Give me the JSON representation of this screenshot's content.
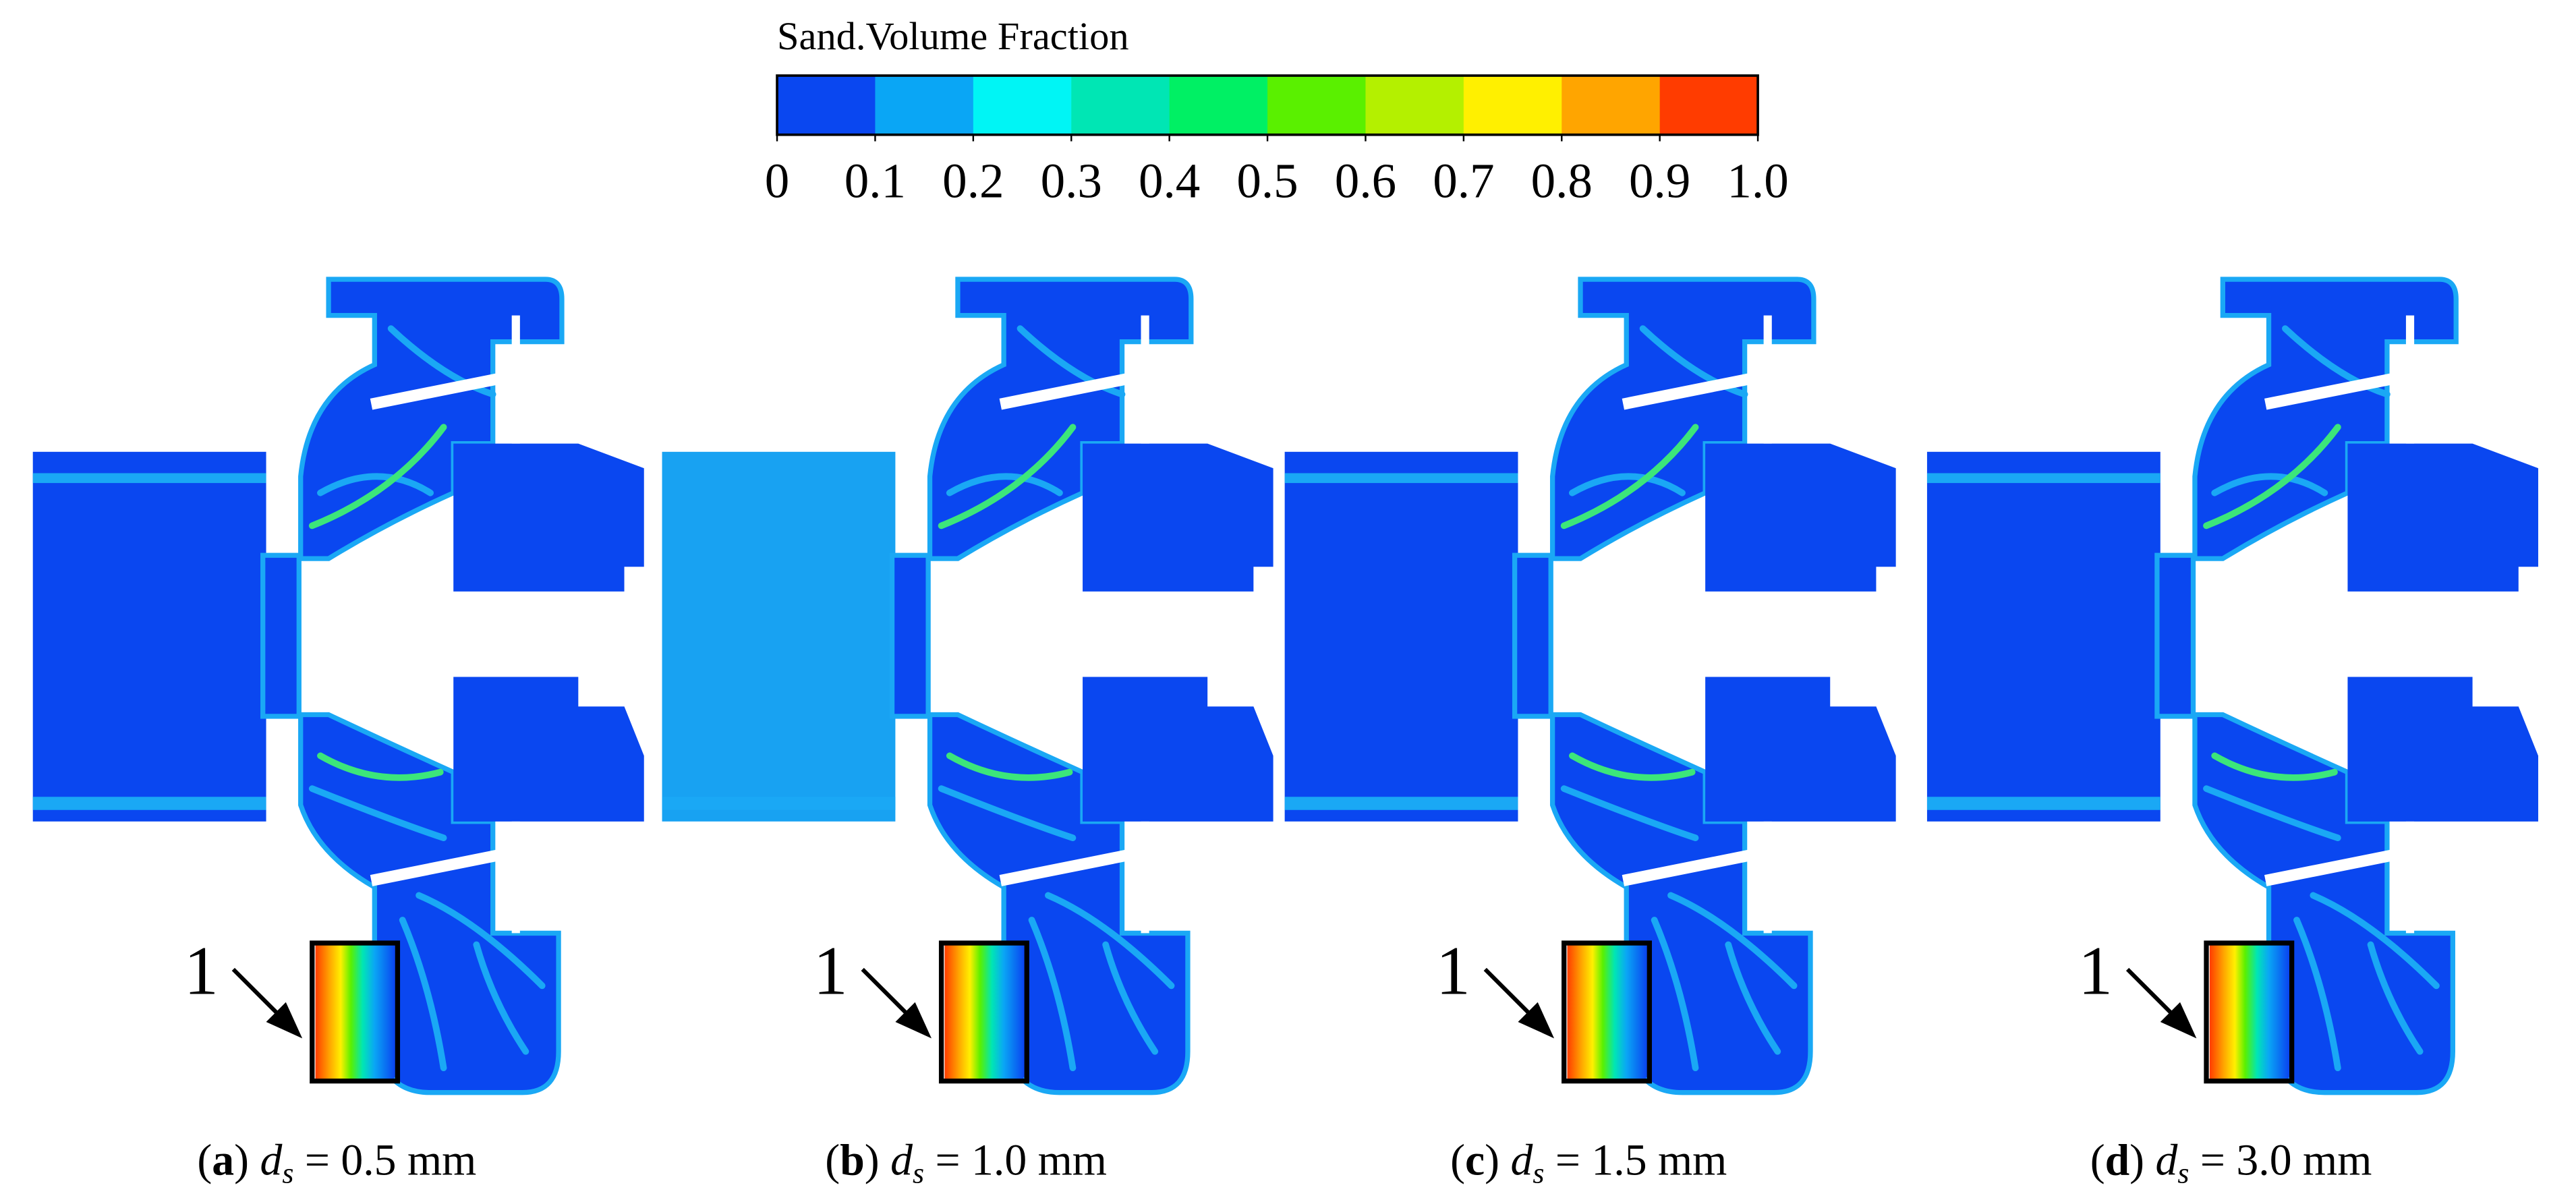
{
  "colorbar": {
    "title": "Sand.Volume Fraction",
    "colors": [
      "#0a47f0",
      "#0aa6f5",
      "#00f5f5",
      "#00e6b4",
      "#00f064",
      "#5af000",
      "#b4f000",
      "#fff000",
      "#ffa500",
      "#ff3c00"
    ],
    "ticks": [
      0,
      0.1,
      0.2,
      0.3,
      0.4,
      0.5,
      0.6,
      0.7,
      0.8,
      0.9,
      {
        "value": 1,
        "label": "1.0"
      }
    ],
    "range": [
      0,
      1
    ]
  },
  "panels": [
    {
      "marker": "1",
      "prefix": "(",
      "letter": "a",
      "suffix": ")",
      "variable": " d",
      "subscript": "s",
      "value": " = 0.5 mm"
    },
    {
      "marker": "1",
      "prefix": "(",
      "letter": "b",
      "suffix": ")",
      "variable": " d",
      "subscript": "s",
      "value": " = 1.0 mm"
    },
    {
      "marker": "1",
      "prefix": "(",
      "letter": "c",
      "suffix": ")",
      "variable": " d",
      "subscript": "s",
      "value": " = 1.5 mm"
    },
    {
      "marker": "1",
      "prefix": "(",
      "letter": "d",
      "suffix": ")",
      "variable": " d",
      "subscript": "s",
      "value": " = 3.0 mm"
    }
  ]
}
